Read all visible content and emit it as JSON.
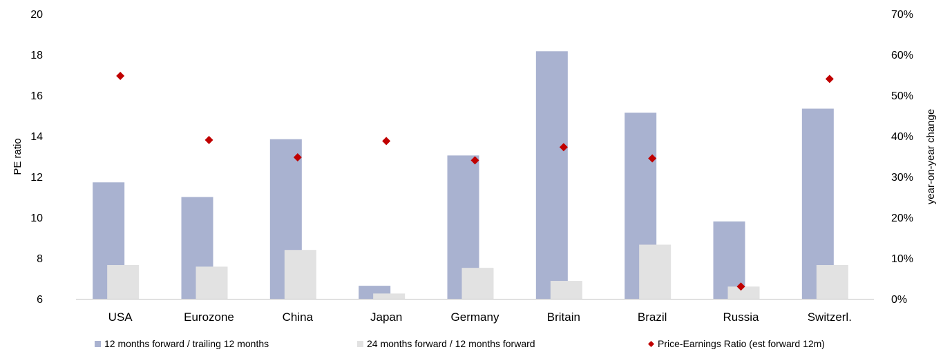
{
  "chart_data": {
    "type": "bar",
    "categories": [
      "USA",
      "Eurozone",
      "China",
      "Japan",
      "Germany",
      "Britain",
      "Brazil",
      "Russia",
      "Switzerl."
    ],
    "series": [
      {
        "name": "12 months forward / trailing 12 months",
        "kind": "bar",
        "axis": "right",
        "color": "#a9b2d0",
        "values": [
          0.286,
          0.25,
          0.392,
          0.032,
          0.352,
          0.608,
          0.457,
          0.19,
          0.467
        ]
      },
      {
        "name": "24 months forward / 12 months forward",
        "kind": "bar",
        "axis": "right",
        "color": "#e2e2e2",
        "values": [
          0.083,
          0.079,
          0.12,
          0.013,
          0.076,
          0.044,
          0.133,
          0.03,
          0.083
        ]
      },
      {
        "name": "Price-Earnings Ratio (est forward 12m)",
        "kind": "scatter",
        "axis": "left",
        "marker": "diamond",
        "color": "#c00000",
        "values": [
          16.95,
          13.8,
          12.95,
          13.75,
          12.8,
          13.45,
          12.9,
          6.6,
          16.8
        ]
      }
    ],
    "ylabel": "PE ratio",
    "y2label": "year-on-year change",
    "ylim": [
      6,
      20
    ],
    "yticks": [
      "20",
      "18",
      "16",
      "14",
      "12",
      "10",
      "8",
      "6"
    ],
    "y2lim": [
      0,
      0.7
    ],
    "y2ticks": [
      "70%",
      "60%",
      "50%",
      "40%",
      "30%",
      "20%",
      "10%",
      "0%"
    ],
    "grid": false,
    "legend_position": "bottom"
  }
}
